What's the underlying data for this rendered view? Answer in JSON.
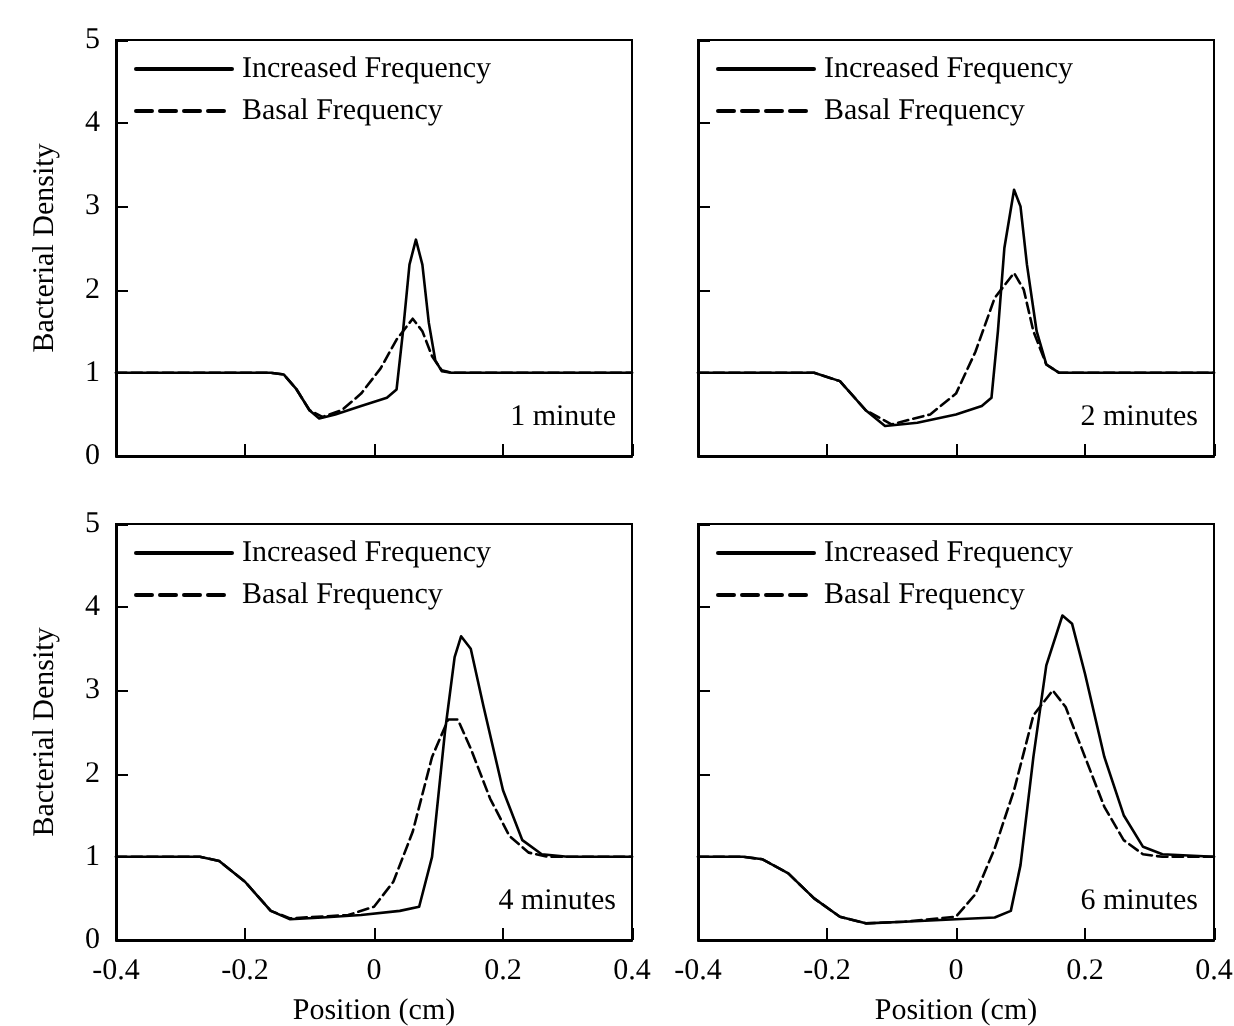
{
  "chart_data": [
    {
      "type": "line",
      "ylabel": "Bacterial Density",
      "annotations": [
        "1 minute"
      ],
      "legend": "top left",
      "tick_labels": "y",
      "xlim": [
        -0.4,
        0.4
      ],
      "xticks": [
        -0.4,
        -0.2,
        0,
        0.2,
        0.4
      ],
      "ylim": [
        0,
        5
      ],
      "yticks": [
        0,
        1,
        2,
        3,
        4,
        5
      ],
      "series": [
        {
          "name": "Increased Frequency",
          "color": "#000000",
          "line_style": "solid",
          "x": [
            -0.4,
            -0.16,
            -0.14,
            -0.12,
            -0.1,
            -0.085,
            -0.06,
            -0.02,
            0.02,
            0.035,
            0.045,
            0.055,
            0.065,
            0.075,
            0.085,
            0.095,
            0.105,
            0.12,
            0.4
          ],
          "values": [
            1,
            1,
            0.98,
            0.8,
            0.55,
            0.45,
            0.5,
            0.6,
            0.7,
            0.8,
            1.5,
            2.3,
            2.6,
            2.3,
            1.6,
            1.15,
            1.02,
            1,
            1
          ]
        },
        {
          "name": "Basal Frequency",
          "color": "#000000",
          "line_style": "dashed",
          "x": [
            -0.4,
            -0.16,
            -0.14,
            -0.12,
            -0.1,
            -0.08,
            -0.05,
            -0.02,
            0.01,
            0.035,
            0.06,
            0.075,
            0.09,
            0.105,
            0.12,
            0.4
          ],
          "values": [
            1,
            1,
            0.98,
            0.8,
            0.55,
            0.47,
            0.55,
            0.75,
            1.05,
            1.4,
            1.65,
            1.5,
            1.2,
            1.03,
            1,
            1
          ]
        }
      ]
    },
    {
      "type": "line",
      "annotations": [
        "2 minutes"
      ],
      "legend": "top left",
      "tick_labels": false,
      "xlim": [
        -0.4,
        0.4
      ],
      "xticks": [
        -0.4,
        -0.2,
        0,
        0.2,
        0.4
      ],
      "ylim": [
        0,
        5
      ],
      "yticks": [
        0,
        1,
        2,
        3,
        4,
        5
      ],
      "series": [
        {
          "name": "Increased Frequency",
          "color": "#000000",
          "line_style": "solid",
          "x": [
            -0.4,
            -0.22,
            -0.18,
            -0.14,
            -0.11,
            -0.06,
            0,
            0.04,
            0.055,
            0.065,
            0.075,
            0.09,
            0.1,
            0.11,
            0.125,
            0.14,
            0.16,
            0.4
          ],
          "values": [
            1,
            1,
            0.9,
            0.55,
            0.36,
            0.4,
            0.5,
            0.6,
            0.7,
            1.5,
            2.5,
            3.2,
            3.0,
            2.3,
            1.5,
            1.1,
            1,
            1
          ]
        },
        {
          "name": "Basal Frequency",
          "color": "#000000",
          "line_style": "dashed",
          "x": [
            -0.4,
            -0.22,
            -0.18,
            -0.14,
            -0.1,
            -0.04,
            0,
            0.03,
            0.06,
            0.09,
            0.105,
            0.12,
            0.14,
            0.16,
            0.4
          ],
          "values": [
            1,
            1,
            0.9,
            0.55,
            0.38,
            0.5,
            0.75,
            1.25,
            1.9,
            2.2,
            2.0,
            1.5,
            1.1,
            1,
            1
          ]
        }
      ]
    },
    {
      "type": "line",
      "xlabel": "Position (cm)",
      "ylabel": "Bacterial Density",
      "annotations": [
        "4 minutes"
      ],
      "legend": "top left",
      "xlim": [
        -0.4,
        0.4
      ],
      "xticks": [
        -0.4,
        -0.2,
        0,
        0.2,
        0.4
      ],
      "ylim": [
        0,
        5
      ],
      "yticks": [
        0,
        1,
        2,
        3,
        4,
        5
      ],
      "series": [
        {
          "name": "Increased Frequency",
          "color": "#000000",
          "line_style": "solid",
          "x": [
            -0.4,
            -0.27,
            -0.24,
            -0.2,
            -0.16,
            -0.13,
            -0.08,
            -0.02,
            0.04,
            0.07,
            0.09,
            0.11,
            0.125,
            0.135,
            0.15,
            0.17,
            0.2,
            0.23,
            0.26,
            0.3,
            0.4
          ],
          "values": [
            1,
            1,
            0.95,
            0.7,
            0.35,
            0.25,
            0.27,
            0.3,
            0.35,
            0.4,
            1.0,
            2.5,
            3.4,
            3.65,
            3.5,
            2.8,
            1.8,
            1.2,
            1.03,
            1,
            1
          ]
        },
        {
          "name": "Basal Frequency",
          "color": "#000000",
          "line_style": "dashed",
          "x": [
            -0.4,
            -0.27,
            -0.24,
            -0.2,
            -0.16,
            -0.13,
            -0.04,
            0,
            0.03,
            0.06,
            0.09,
            0.115,
            0.13,
            0.15,
            0.18,
            0.21,
            0.24,
            0.27,
            0.4
          ],
          "values": [
            1,
            1,
            0.95,
            0.7,
            0.35,
            0.26,
            0.3,
            0.4,
            0.7,
            1.3,
            2.2,
            2.65,
            2.65,
            2.3,
            1.7,
            1.25,
            1.05,
            1,
            1
          ]
        }
      ]
    },
    {
      "type": "line",
      "xlabel": "Position (cm)",
      "annotations": [
        "6 minutes"
      ],
      "legend": "top left",
      "tick_labels": "x",
      "xlim": [
        -0.4,
        0.4
      ],
      "xticks": [
        -0.4,
        -0.2,
        0,
        0.2,
        0.4
      ],
      "ylim": [
        0,
        5
      ],
      "yticks": [
        0,
        1,
        2,
        3,
        4,
        5
      ],
      "series": [
        {
          "name": "Increased Frequency",
          "color": "#000000",
          "line_style": "solid",
          "x": [
            -0.4,
            -0.33,
            -0.3,
            -0.26,
            -0.22,
            -0.18,
            -0.14,
            -0.08,
            0,
            0.06,
            0.085,
            0.1,
            0.12,
            0.14,
            0.165,
            0.18,
            0.2,
            0.23,
            0.26,
            0.29,
            0.32,
            0.4
          ],
          "values": [
            1,
            1,
            0.97,
            0.8,
            0.5,
            0.28,
            0.2,
            0.22,
            0.25,
            0.27,
            0.35,
            0.9,
            2.2,
            3.3,
            3.9,
            3.8,
            3.2,
            2.2,
            1.5,
            1.12,
            1.03,
            1
          ]
        },
        {
          "name": "Basal Frequency",
          "color": "#000000",
          "line_style": "dashed",
          "x": [
            -0.4,
            -0.33,
            -0.3,
            -0.26,
            -0.22,
            -0.18,
            -0.14,
            -0.08,
            0,
            0.03,
            0.06,
            0.09,
            0.12,
            0.15,
            0.17,
            0.2,
            0.23,
            0.26,
            0.29,
            0.32,
            0.4
          ],
          "values": [
            1,
            1,
            0.97,
            0.8,
            0.5,
            0.28,
            0.2,
            0.22,
            0.28,
            0.55,
            1.1,
            1.8,
            2.7,
            3.0,
            2.8,
            2.2,
            1.6,
            1.2,
            1.03,
            1,
            1
          ]
        }
      ]
    }
  ]
}
